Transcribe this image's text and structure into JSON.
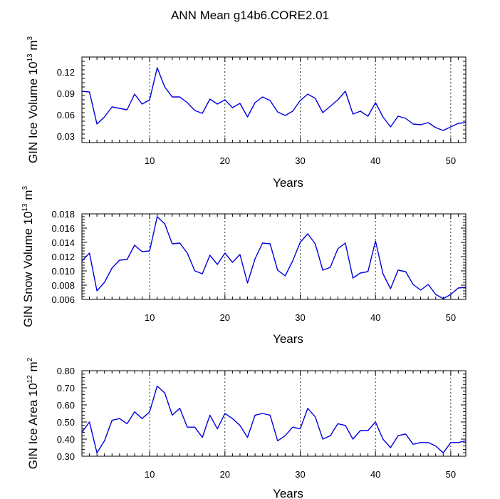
{
  "title": "ANN Mean g14b6.CORE2.01",
  "chart_data": [
    {
      "type": "line",
      "ylabel_main": "GIN Ice Volume 10",
      "ylabel_exp": "13",
      "ylabel_unit": " m",
      "ylabel_unit_exp": "3",
      "xlabel": "Years",
      "xlim": [
        1,
        52
      ],
      "ylim": [
        0.021,
        0.141
      ],
      "xticks": [
        10,
        20,
        30,
        40,
        50
      ],
      "yticks": [
        0.03,
        0.06,
        0.09,
        0.12
      ],
      "ytick_labels": [
        "0.03",
        "0.06",
        "0.09",
        "0.12"
      ],
      "xtick_labels": [
        "10",
        "20",
        "30",
        "40",
        "50"
      ],
      "grid_x": [
        10,
        20,
        30,
        40,
        50
      ],
      "color": "#0000dd",
      "x": [
        1,
        2,
        3,
        4,
        5,
        6,
        7,
        8,
        9,
        10,
        11,
        12,
        13,
        14,
        15,
        16,
        17,
        18,
        19,
        20,
        21,
        22,
        23,
        24,
        25,
        26,
        27,
        28,
        29,
        30,
        31,
        32,
        33,
        34,
        35,
        36,
        37,
        38,
        39,
        40,
        41,
        42,
        43,
        44,
        45,
        46,
        47,
        48,
        49,
        50,
        51,
        52
      ],
      "values": [
        0.093,
        0.092,
        0.047,
        0.057,
        0.071,
        0.069,
        0.067,
        0.089,
        0.075,
        0.081,
        0.126,
        0.099,
        0.085,
        0.085,
        0.077,
        0.066,
        0.062,
        0.082,
        0.075,
        0.081,
        0.07,
        0.076,
        0.057,
        0.077,
        0.085,
        0.08,
        0.064,
        0.059,
        0.065,
        0.08,
        0.089,
        0.083,
        0.063,
        0.072,
        0.081,
        0.093,
        0.061,
        0.065,
        0.058,
        0.077,
        0.057,
        0.043,
        0.058,
        0.055,
        0.047,
        0.046,
        0.049,
        0.042,
        0.038,
        0.043,
        0.048,
        0.049
      ]
    },
    {
      "type": "line",
      "ylabel_main": "GIN Snow Volume 10",
      "ylabel_exp": "13",
      "ylabel_unit": " m",
      "ylabel_unit_exp": "3",
      "xlabel": "Years",
      "xlim": [
        1,
        52
      ],
      "ylim": [
        0.006,
        0.018
      ],
      "xticks": [
        10,
        20,
        30,
        40,
        50
      ],
      "yticks": [
        0.006,
        0.008,
        0.01,
        0.012,
        0.014,
        0.016,
        0.018
      ],
      "ytick_labels": [
        "0.006",
        "0.008",
        "0.010",
        "0.012",
        "0.014",
        "0.016",
        "0.018"
      ],
      "xtick_labels": [
        "10",
        "20",
        "30",
        "40",
        "50"
      ],
      "grid_x": [
        10,
        20,
        30,
        40,
        50
      ],
      "color": "#0000dd",
      "x": [
        1,
        2,
        3,
        4,
        5,
        6,
        7,
        8,
        9,
        10,
        11,
        12,
        13,
        14,
        15,
        16,
        17,
        18,
        19,
        20,
        21,
        22,
        23,
        24,
        25,
        26,
        27,
        28,
        29,
        30,
        31,
        32,
        33,
        34,
        35,
        36,
        37,
        38,
        39,
        40,
        41,
        42,
        43,
        44,
        45,
        46,
        47,
        48,
        49,
        50,
        51,
        52
      ],
      "values": [
        0.0114,
        0.0125,
        0.0072,
        0.0084,
        0.0104,
        0.0115,
        0.0116,
        0.0136,
        0.0127,
        0.0128,
        0.0176,
        0.0166,
        0.0138,
        0.0139,
        0.0125,
        0.01,
        0.0096,
        0.0122,
        0.0109,
        0.0125,
        0.0112,
        0.0123,
        0.0083,
        0.0117,
        0.0139,
        0.0138,
        0.0101,
        0.0093,
        0.0114,
        0.014,
        0.0152,
        0.0138,
        0.0101,
        0.0105,
        0.0131,
        0.0139,
        0.009,
        0.0097,
        0.0099,
        0.0142,
        0.0096,
        0.0075,
        0.0101,
        0.0099,
        0.0081,
        0.0073,
        0.0081,
        0.0067,
        0.0061,
        0.0067,
        0.0076,
        0.0077
      ]
    },
    {
      "type": "line",
      "ylabel_main": "GIN Ice Area 10",
      "ylabel_exp": "12",
      "ylabel_unit": " m",
      "ylabel_unit_exp": "2",
      "xlabel": "Years",
      "xlim": [
        1,
        52
      ],
      "ylim": [
        0.3,
        0.8
      ],
      "xticks": [
        10,
        20,
        30,
        40,
        50
      ],
      "yticks": [
        0.3,
        0.4,
        0.5,
        0.6,
        0.7,
        0.8
      ],
      "ytick_labels": [
        "0.30",
        "0.40",
        "0.50",
        "0.60",
        "0.70",
        "0.80"
      ],
      "xtick_labels": [
        "10",
        "20",
        "30",
        "40",
        "50"
      ],
      "grid_x": [
        10,
        20,
        30,
        40,
        50
      ],
      "color": "#0000dd",
      "x": [
        1,
        2,
        3,
        4,
        5,
        6,
        7,
        8,
        9,
        10,
        11,
        12,
        13,
        14,
        15,
        16,
        17,
        18,
        19,
        20,
        21,
        22,
        23,
        24,
        25,
        26,
        27,
        28,
        29,
        30,
        31,
        32,
        33,
        34,
        35,
        36,
        37,
        38,
        39,
        40,
        41,
        42,
        43,
        44,
        45,
        46,
        47,
        48,
        49,
        50,
        51,
        52
      ],
      "values": [
        0.44,
        0.5,
        0.32,
        0.39,
        0.51,
        0.52,
        0.49,
        0.56,
        0.52,
        0.56,
        0.71,
        0.67,
        0.54,
        0.58,
        0.47,
        0.47,
        0.41,
        0.54,
        0.46,
        0.55,
        0.52,
        0.48,
        0.41,
        0.54,
        0.55,
        0.54,
        0.39,
        0.42,
        0.47,
        0.46,
        0.58,
        0.53,
        0.4,
        0.42,
        0.49,
        0.48,
        0.4,
        0.45,
        0.45,
        0.5,
        0.4,
        0.35,
        0.42,
        0.43,
        0.37,
        0.38,
        0.38,
        0.36,
        0.32,
        0.38,
        0.38,
        0.39
      ]
    }
  ]
}
